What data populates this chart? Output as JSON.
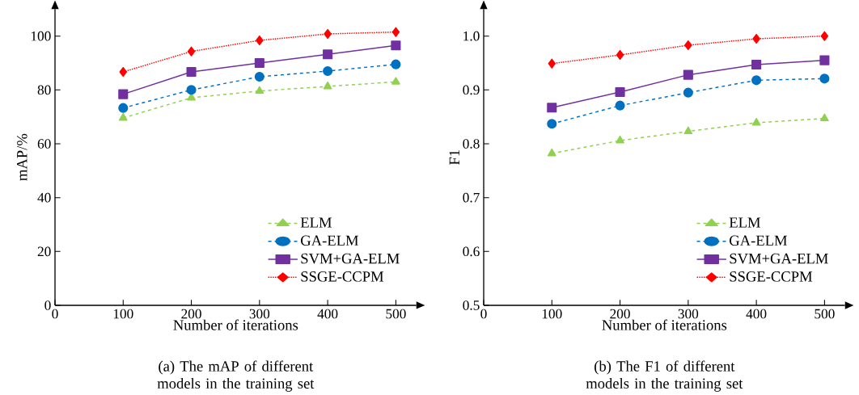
{
  "chart_data": [
    {
      "type": "line",
      "title": "(a) The mAP of different models in the training set",
      "xlabel": "Number of  iterations",
      "ylabel": "mAP/%",
      "x": [
        100,
        200,
        300,
        400,
        500
      ],
      "xlim": [
        0,
        530
      ],
      "ylim": [
        0,
        110
      ],
      "xticks": [
        0,
        100,
        200,
        300,
        400,
        500
      ],
      "yticks": [
        0,
        20,
        40,
        60,
        80,
        100
      ],
      "legend": "bottom right",
      "series": [
        {
          "name": "ELM",
          "color": "#92d050",
          "marker": "triangle",
          "line_style": "dashed",
          "values": [
            69.6,
            77.1,
            79.6,
            81.3,
            83.0
          ]
        },
        {
          "name": "GA-ELM",
          "color": "#0070c0",
          "marker": "circle",
          "line_style": "dashed",
          "values": [
            73.3,
            80.0,
            84.9,
            87.0,
            89.5
          ]
        },
        {
          "name": "SVM+GA-ELM",
          "color": "#7030a0",
          "marker": "square",
          "line_style": "solid",
          "values": [
            78.4,
            86.7,
            90.0,
            93.2,
            96.5
          ]
        },
        {
          "name": "SSGE-CCPM",
          "color": "#ff0000",
          "marker": "diamond",
          "line_style": "dotted",
          "values": [
            86.7,
            94.3,
            98.4,
            100.8,
            101.5
          ]
        }
      ]
    },
    {
      "type": "line",
      "title": "(b) The F1 of different models in the training set",
      "xlabel": "Number of  iterations",
      "ylabel": "F1",
      "x": [
        100,
        200,
        300,
        400,
        500
      ],
      "xlim": [
        0,
        530
      ],
      "ylim": [
        0.5,
        1.05
      ],
      "xticks": [
        0,
        100,
        200,
        300,
        400,
        500
      ],
      "yticks": [
        0.5,
        0.6,
        0.7,
        0.8,
        0.9,
        {
          "value": 1,
          "label": "1.0"
        }
      ],
      "legend": "bottom right",
      "series": [
        {
          "name": "ELM",
          "color": "#92d050",
          "marker": "triangle",
          "line_style": "dashed",
          "values": [
            0.782,
            0.806,
            0.823,
            0.839,
            0.847
          ]
        },
        {
          "name": "GA-ELM",
          "color": "#0070c0",
          "marker": "circle",
          "line_style": "dashed",
          "values": [
            0.837,
            0.871,
            0.895,
            0.918,
            0.921
          ]
        },
        {
          "name": "SVM+GA-ELM",
          "color": "#7030a0",
          "marker": "square",
          "line_style": "solid",
          "values": [
            0.867,
            0.896,
            0.928,
            0.947,
            0.955
          ]
        },
        {
          "name": "SSGE-CCPM",
          "color": "#ff0000",
          "marker": "diamond",
          "line_style": "dotted",
          "values": [
            0.949,
            0.965,
            0.983,
            0.995,
            1.0
          ]
        }
      ]
    }
  ]
}
